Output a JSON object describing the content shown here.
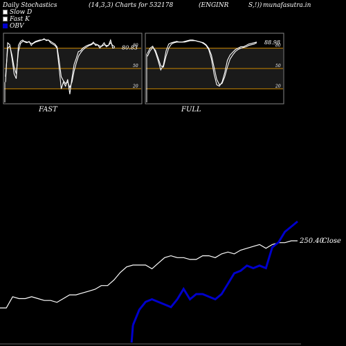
{
  "header": {
    "title": "Daily Stochastics",
    "params": "(14,3,3) Charts for 532178",
    "symbol": "(ENGINR",
    "symbol2": "S,!))",
    "site": "munafasutra.in"
  },
  "legend": [
    {
      "label": "Slow  D",
      "color": "#ffffff"
    },
    {
      "label": "Fast  K",
      "color": "#ffffff"
    },
    {
      "label": "OBV",
      "color": "#0000cc"
    }
  ],
  "colors": {
    "background": "#000000",
    "line": "#ffffff",
    "obv": "#0000cc",
    "level": "#cc8800",
    "panel": "#1a1a1a",
    "border": "#888888"
  },
  "chart_data": [
    {
      "type": "line",
      "title": "FAST",
      "ylim": [
        0,
        100
      ],
      "levels": [
        20,
        50,
        80
      ],
      "level_labels": [
        "20",
        "50",
        "80"
      ],
      "current_value_label": "80.83",
      "series": [
        {
          "name": "Fast K",
          "values": [
            30,
            88,
            85,
            65,
            42,
            35,
            84,
            90,
            92,
            89,
            88,
            90,
            84,
            88,
            90,
            91,
            92,
            92,
            94,
            91,
            92,
            88,
            86,
            84,
            80,
            50,
            20,
            30,
            24,
            34,
            12,
            36,
            56,
            65,
            75,
            76,
            80,
            82,
            84,
            85,
            86,
            89,
            84,
            85,
            80,
            84,
            88,
            82,
            84,
            92,
            80,
            81
          ]
        },
        {
          "name": "Slow  D",
          "values": [
            38,
            80,
            83,
            70,
            52,
            42,
            75,
            87,
            90,
            90,
            89,
            89,
            87,
            87,
            89,
            90,
            91,
            92,
            93,
            92,
            92,
            90,
            88,
            86,
            82,
            62,
            38,
            32,
            28,
            30,
            22,
            30,
            46,
            58,
            68,
            73,
            77,
            80,
            82,
            84,
            85,
            87,
            86,
            85,
            83,
            83,
            85,
            84,
            84,
            88,
            84,
            82
          ]
        }
      ]
    },
    {
      "type": "line",
      "title": "FULL",
      "ylim": [
        0,
        100
      ],
      "levels": [
        20,
        50,
        80
      ],
      "level_labels": [
        "20",
        "50",
        "80"
      ],
      "current_value_label": "88.98",
      "series": [
        {
          "name": "Fast K",
          "values": [
            72,
            80,
            83,
            74,
            62,
            48,
            55,
            76,
            86,
            88,
            89,
            90,
            89,
            89,
            90,
            91,
            92,
            92,
            91,
            90,
            89,
            87,
            84,
            78,
            64,
            42,
            26,
            24,
            30,
            44,
            62,
            70,
            74,
            78,
            80,
            82,
            82,
            84,
            86,
            87,
            88,
            89
          ]
        },
        {
          "name": "Slow  D",
          "values": [
            68,
            76,
            81,
            77,
            66,
            54,
            52,
            68,
            80,
            86,
            88,
            89,
            89,
            89,
            89,
            90,
            91,
            91,
            91,
            90,
            89,
            88,
            85,
            80,
            70,
            52,
            34,
            26,
            28,
            38,
            52,
            64,
            70,
            75,
            78,
            80,
            81,
            82,
            84,
            85,
            86,
            88
          ]
        }
      ]
    },
    {
      "type": "line",
      "title": "",
      "close_label": "250.40",
      "close_suffix": "Close",
      "series": [
        {
          "name": "Close",
          "values": [
            225,
            225,
            231,
            230,
            230,
            231,
            230,
            229,
            229,
            228,
            230,
            232,
            232,
            233,
            234,
            235,
            237,
            237,
            240,
            244,
            247,
            248,
            248,
            248,
            246,
            249,
            252,
            253,
            252,
            252,
            251,
            251,
            253,
            253,
            252,
            254,
            255,
            254,
            256,
            257,
            258,
            259,
            257,
            259,
            260,
            260,
            261,
            261
          ]
        },
        {
          "name": "OBV",
          "values": [
            null,
            null,
            null,
            null,
            null,
            null,
            null,
            null,
            null,
            null,
            null,
            null,
            null,
            null,
            null,
            null,
            null,
            null,
            null,
            null,
            null,
            0,
            6,
            9,
            10,
            9,
            8,
            7,
            10,
            14,
            10,
            12,
            12,
            11,
            10,
            12,
            16,
            20,
            21,
            23,
            22,
            23,
            22,
            30,
            32,
            36,
            38,
            40
          ]
        }
      ]
    }
  ]
}
